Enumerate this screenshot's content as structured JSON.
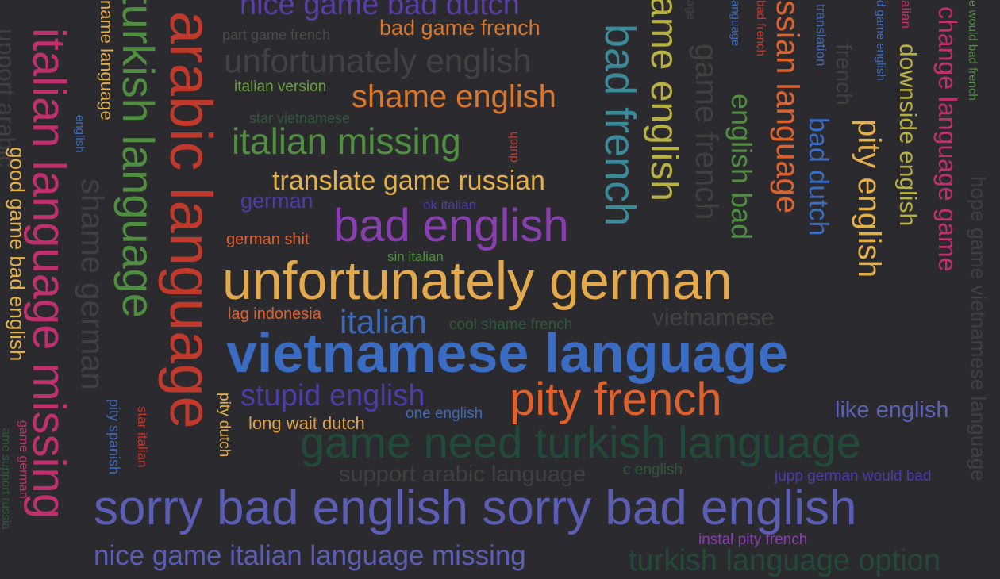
{
  "words": [
    {
      "text": "nice game bad dutch",
      "color": "#5a3fa8"
    },
    {
      "text": "part game french",
      "color": "#4a4a4a"
    },
    {
      "text": "bad game french",
      "color": "#d9772b"
    },
    {
      "text": "unfortunately english",
      "color": "#424242"
    },
    {
      "text": "italian version",
      "color": "#6aa33a"
    },
    {
      "text": "shame english",
      "color": "#d9772b"
    },
    {
      "text": "star vietnamese",
      "color": "#2e5a3a"
    },
    {
      "text": "italian missing",
      "color": "#4f8f3f"
    },
    {
      "text": "dutch",
      "color": "#c0392b"
    },
    {
      "text": "translate game russian",
      "color": "#e3b04a"
    },
    {
      "text": "german",
      "color": "#4b3da8"
    },
    {
      "text": "ok italian",
      "color": "#4b3da8"
    },
    {
      "text": "bad english",
      "color": "#8a3fb0"
    },
    {
      "text": "german shit",
      "color": "#e0612b"
    },
    {
      "text": "sin italian",
      "color": "#4f8f3f"
    },
    {
      "text": "unfortunately german",
      "color": "#e3a94a"
    },
    {
      "text": "lag indonesia",
      "color": "#e0612b"
    },
    {
      "text": "italian",
      "color": "#3c6ab8"
    },
    {
      "text": "cool shame french",
      "color": "#2e5a3a"
    },
    {
      "text": "vietnamese",
      "color": "#424242"
    },
    {
      "text": "vietnamese language",
      "color": "#3a6cc4"
    },
    {
      "text": "stupid english",
      "color": "#4b3da8"
    },
    {
      "text": "pity french",
      "color": "#e0612b"
    },
    {
      "text": "one english",
      "color": "#3c6ab8"
    },
    {
      "text": "long wait dutch",
      "color": "#e0a14a"
    },
    {
      "text": "like english",
      "color": "#5a62b8"
    },
    {
      "text": "game need turkish language",
      "color": "#224a38"
    },
    {
      "text": "support arabic language",
      "color": "#404040"
    },
    {
      "text": "c english",
      "color": "#2e5a3a"
    },
    {
      "text": "jupp german would bad",
      "color": "#4b3da8"
    },
    {
      "text": "sorry bad english sorry bad english",
      "color": "#5a5fb5"
    },
    {
      "text": "instal pity french",
      "color": "#8a3fb0"
    },
    {
      "text": "nice game italian language missing",
      "color": "#5a5fb5"
    },
    {
      "text": "turkish language option",
      "color": "#224a38"
    },
    {
      "text": "upport arabic",
      "color": "#404040"
    },
    {
      "text": "good game bad english",
      "color": "#e3b04a"
    },
    {
      "text": "italian language missing",
      "color": "#c0306e"
    },
    {
      "text": "english",
      "color": "#3c6ab8"
    },
    {
      "text": "name language",
      "color": "#e3b04a"
    },
    {
      "text": "shame german",
      "color": "#404040"
    },
    {
      "text": "turkish language",
      "color": "#4f8f3f"
    },
    {
      "text": "pity spanish",
      "color": "#3c6ab8"
    },
    {
      "text": "star italian",
      "color": "#c0392b"
    },
    {
      "text": "arabic language",
      "color": "#c0392b"
    },
    {
      "text": "pity dutch",
      "color": "#e3b04a"
    },
    {
      "text": "game german",
      "color": "#c0306e"
    },
    {
      "text": "ame support russia",
      "color": "#2e5a3a"
    },
    {
      "text": "ame english",
      "color": "#b8b040"
    },
    {
      "text": "bad french",
      "color": "#3a8a9a"
    },
    {
      "text": "game french",
      "color": "#404040"
    },
    {
      "text": "age",
      "color": "#404040"
    },
    {
      "text": "anguage",
      "color": "#3c6ab8"
    },
    {
      "text": "english bad",
      "color": "#4f8f3f"
    },
    {
      "text": "bad french",
      "color": "#c0392b"
    },
    {
      "text": "ssian language",
      "color": "#e0612b"
    },
    {
      "text": "translation",
      "color": "#3c6ab8"
    },
    {
      "text": "bad dutch",
      "color": "#3a6cc4"
    },
    {
      "text": "french",
      "color": "#404040"
    },
    {
      "text": "d game english",
      "color": "#3a6cc4"
    },
    {
      "text": "pity english",
      "color": "#e3b04a"
    },
    {
      "text": "alian",
      "color": "#c0306e"
    },
    {
      "text": "downside english",
      "color": "#b8b040"
    },
    {
      "text": "change language game",
      "color": "#c0306e"
    },
    {
      "text": "e would bad french",
      "color": "#4f8f3f"
    },
    {
      "text": "hope game vietnamese language",
      "color": "#404040"
    }
  ]
}
